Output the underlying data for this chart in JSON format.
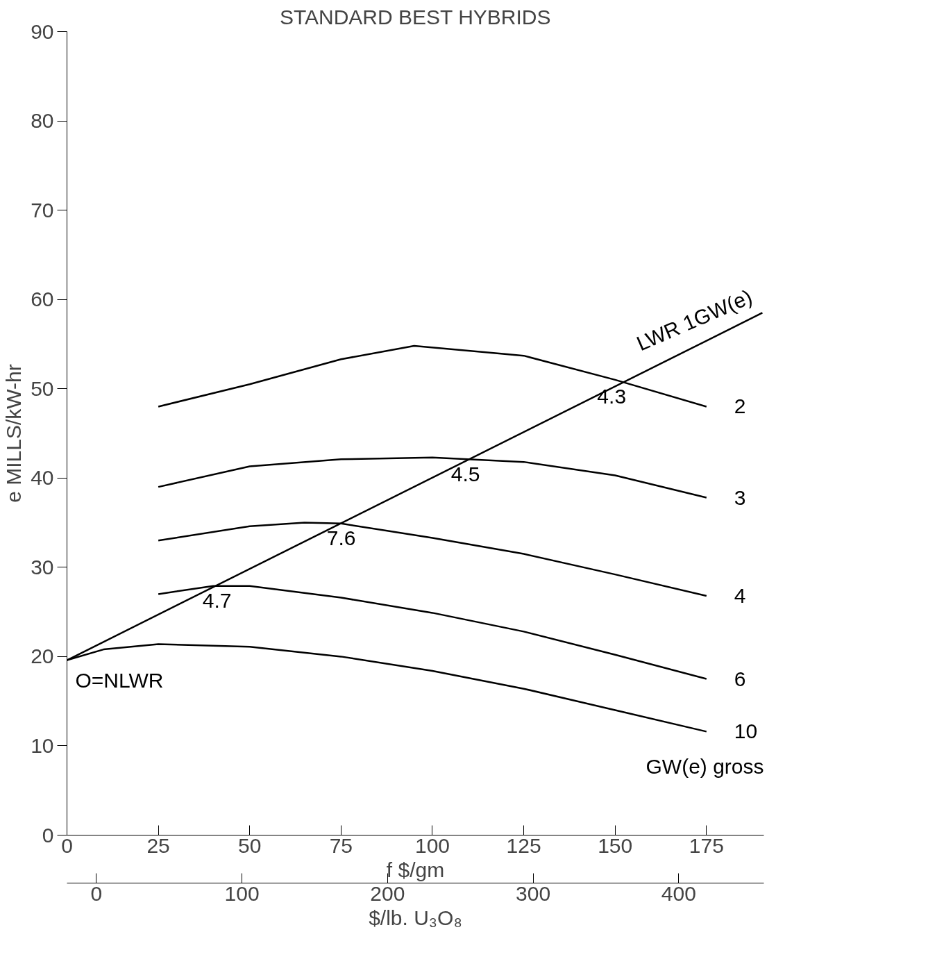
{
  "chart_data": {
    "type": "line",
    "title": "STANDARD BEST HYBRIDS",
    "xlabel": "f $/gm",
    "ylabel": "e MILLS/kW-hr",
    "x2label": "$/lb. U₃O₈",
    "xlim": [
      0,
      190.7
    ],
    "xticks": [
      0,
      25,
      50,
      75,
      100,
      125,
      150,
      175
    ],
    "ylim": [
      0,
      90
    ],
    "yticks": [
      0,
      10,
      20,
      30,
      40,
      50,
      60,
      70,
      80,
      90
    ],
    "x2lim": [
      -20.2,
      458.5
    ],
    "x2ticks": [
      0,
      100,
      200,
      300,
      400
    ],
    "grid": false,
    "marker": "none",
    "line_style": "solid",
    "series": [
      {
        "name": "2",
        "color": "#000000",
        "x": [
          25,
          50,
          75,
          95,
          125,
          150,
          175
        ],
        "values": [
          48,
          50.5,
          53.3,
          54.8,
          53.7,
          51,
          48
        ]
      },
      {
        "name": "3",
        "color": "#000000",
        "x": [
          25,
          50,
          75,
          100,
          125,
          150,
          175
        ],
        "values": [
          39,
          41.3,
          42.1,
          42.3,
          41.8,
          40.3,
          37.8
        ]
      },
      {
        "name": "4",
        "color": "#000000",
        "x": [
          25,
          50,
          65,
          75,
          100,
          125,
          150,
          175
        ],
        "values": [
          33,
          34.6,
          35,
          34.9,
          33.3,
          31.5,
          29.2,
          26.8
        ]
      },
      {
        "name": "6",
        "color": "#000000",
        "x": [
          25,
          40,
          50,
          75,
          100,
          125,
          150,
          175
        ],
        "values": [
          27,
          27.9,
          27.9,
          26.6,
          24.9,
          22.8,
          20.2,
          17.5
        ]
      },
      {
        "name": "10",
        "color": "#000000",
        "x": [
          0,
          10,
          25,
          50,
          75,
          100,
          125,
          150,
          175
        ],
        "values": [
          19.6,
          20.8,
          21.4,
          21.1,
          20,
          18.4,
          16.4,
          14,
          11.6
        ]
      },
      {
        "name": "LWR 1GW(e)",
        "color": "#000000",
        "x": [
          0,
          190.3
        ],
        "values": [
          19.6,
          58.5
        ]
      }
    ],
    "annotations": [
      {
        "text": "4.3",
        "x": 150,
        "y": 50.8
      },
      {
        "text": "4.5",
        "x": 110,
        "y": 42.1
      },
      {
        "text": "7.6",
        "x": 76,
        "y": 35
      },
      {
        "text": "4.7",
        "x": 42,
        "y": 28
      },
      {
        "text": "O=NLWR",
        "x": 0,
        "y": 19.6
      },
      "GW(e) gross"
    ]
  }
}
